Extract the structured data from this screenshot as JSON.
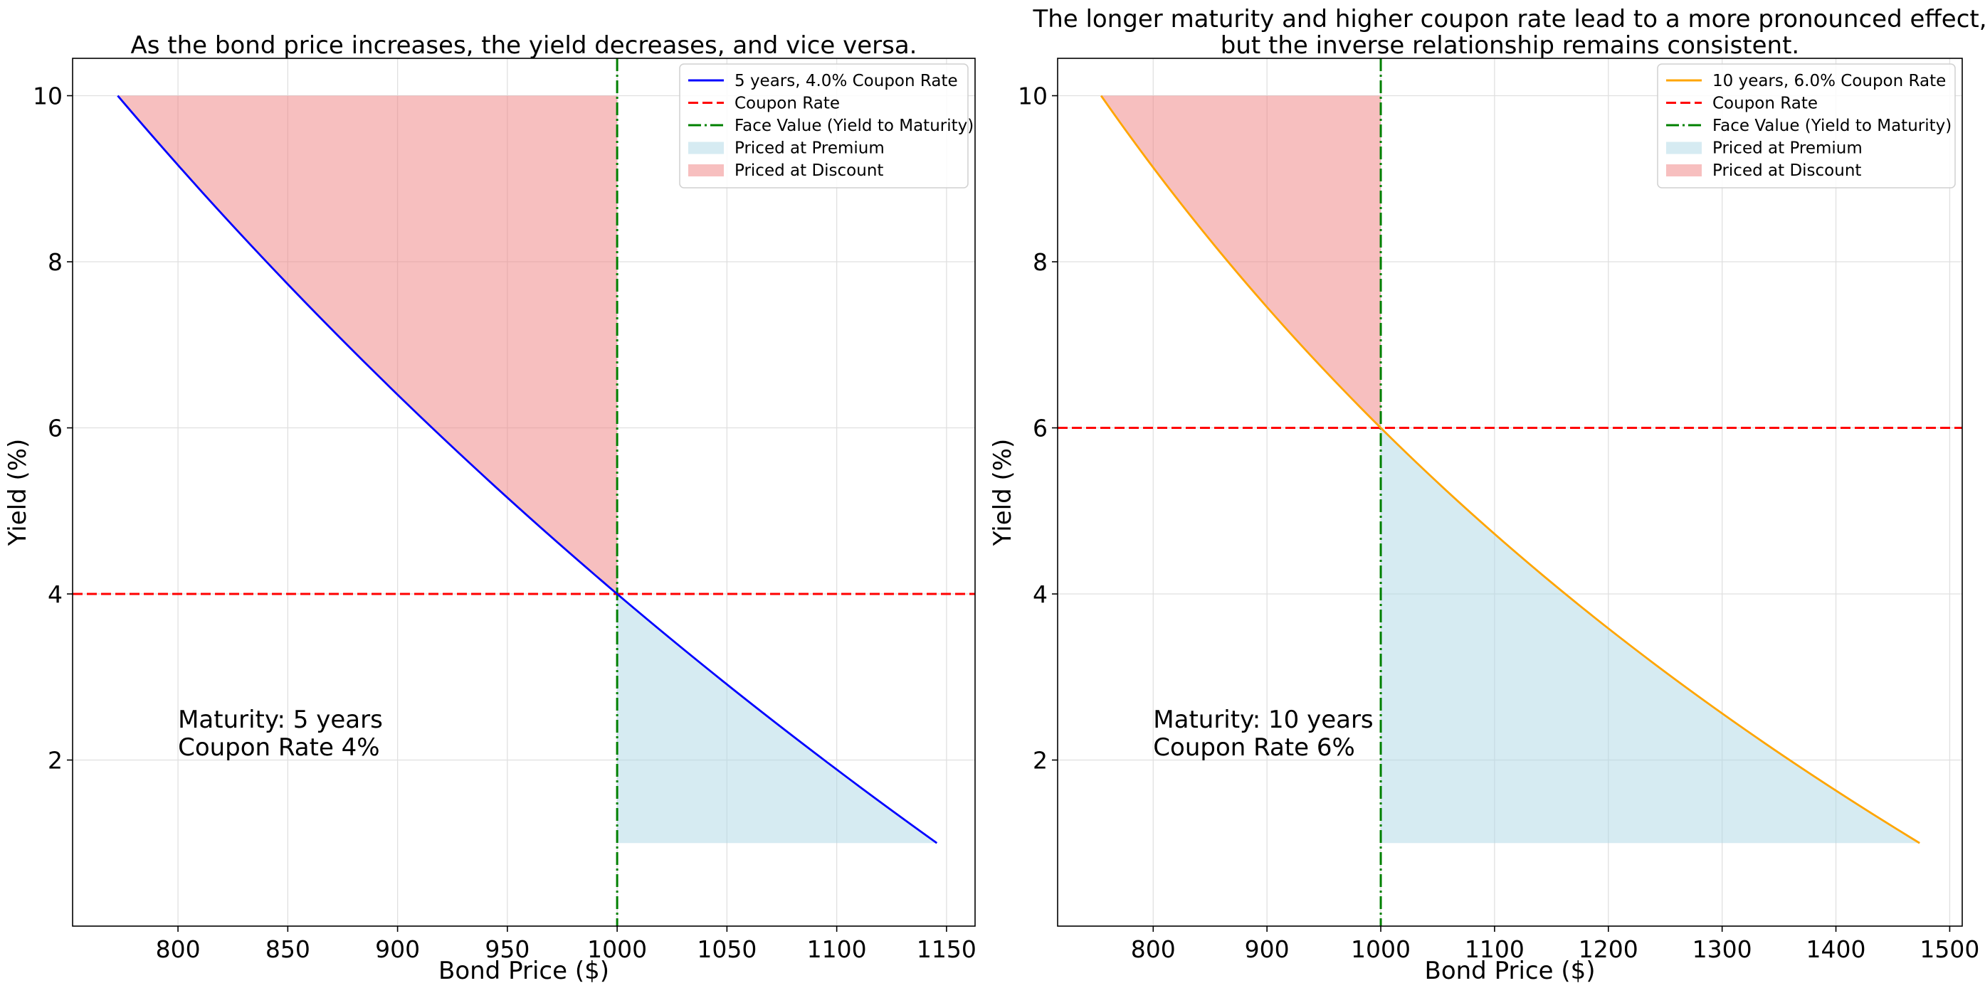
{
  "chart_data": [
    {
      "type": "line",
      "title": "As the bond price increases, the yield decreases, and vice versa.",
      "title_lines": [
        "As the bond price increases, the yield decreases, and vice versa."
      ],
      "xlabel": "Bond Price ($)",
      "ylabel": "Yield (%)",
      "xlim": [
        752,
        1163
      ],
      "ylim": [
        0.0,
        10.45
      ],
      "xticks": [
        800,
        850,
        900,
        950,
        1000,
        1050,
        1100,
        1150
      ],
      "yticks": [
        2,
        4,
        6,
        8,
        10
      ],
      "grid": true,
      "legend_position": "top-right",
      "maturity_years": 5,
      "coupon_rate": 4.0,
      "face_value": 1000,
      "yield_range": [
        1.0,
        10.0
      ],
      "series": [
        {
          "name": "5 years, 4.0% Coupon Rate",
          "color": "#0000ff",
          "style": "solid",
          "x": [
            1145.8,
            1096.0,
            1047.9,
            1000.0,
            934.7,
            878.9,
            830.5,
            788.2,
            772.6
          ],
          "y": [
            1,
            2,
            3,
            4,
            5.5,
            7,
            8.5,
            9.9,
            10
          ]
        }
      ],
      "legend": [
        {
          "label": "5 years, 4.0% Coupon Rate",
          "kind": "line",
          "color": "#0000ff",
          "dash": "solid"
        },
        {
          "label": "Coupon Rate",
          "kind": "line",
          "color": "#ff0000",
          "dash": "dashed"
        },
        {
          "label": "Face Value (Yield to Maturity)",
          "kind": "line",
          "color": "#008000",
          "dash": "dashdot"
        },
        {
          "label": "Priced at Premium",
          "kind": "patch",
          "color": "#add8e6"
        },
        {
          "label": "Priced at Discount",
          "kind": "patch",
          "color": "#f08080"
        }
      ],
      "annotation": [
        "Maturity: 5 years",
        "Coupon Rate 4%"
      ],
      "annotation_at": [
        800,
        2.2
      ]
    },
    {
      "type": "line",
      "title": "The longer maturity and higher coupon rate lead to a more pronounced effect, but the inverse relationship remains consistent.",
      "title_lines": [
        "The longer maturity and higher coupon rate lead to a more pronounced effect,",
        "but the inverse relationship remains consistent."
      ],
      "xlabel": "Bond Price ($)",
      "ylabel": "Yield (%)",
      "xlim": [
        716,
        1511
      ],
      "ylim": [
        0.0,
        10.45
      ],
      "xticks": [
        800,
        900,
        1000,
        1100,
        1200,
        1300,
        1400,
        1500
      ],
      "yticks": [
        2,
        4,
        6,
        8,
        10
      ],
      "grid": true,
      "legend_position": "top-right",
      "maturity_years": 10,
      "coupon_rate": 6.0,
      "face_value": 1000,
      "yield_range": [
        1.0,
        10.0
      ],
      "series": [
        {
          "name": "10 years, 6.0% Coupon Rate",
          "color": "#ffa500",
          "style": "solid",
          "x": [
            1473.6,
            1357.3,
            1254.6,
            1163.5,
            1082.8,
            1000.0,
            896.8,
            807.3,
            754.2
          ],
          "y": [
            1,
            2,
            3,
            4,
            5,
            6,
            7.5,
            9,
            10
          ]
        }
      ],
      "legend": [
        {
          "label": "10 years, 6.0% Coupon Rate",
          "kind": "line",
          "color": "#ffa500",
          "dash": "solid"
        },
        {
          "label": "Coupon Rate",
          "kind": "line",
          "color": "#ff0000",
          "dash": "dashed"
        },
        {
          "label": "Face Value (Yield to Maturity)",
          "kind": "line",
          "color": "#008000",
          "dash": "dashdot"
        },
        {
          "label": "Priced at Premium",
          "kind": "patch",
          "color": "#add8e6"
        },
        {
          "label": "Priced at Discount",
          "kind": "patch",
          "color": "#f08080"
        }
      ],
      "annotation": [
        "Maturity: 10 years",
        "Coupon Rate 6%"
      ],
      "annotation_at": [
        800,
        2.2
      ]
    }
  ]
}
